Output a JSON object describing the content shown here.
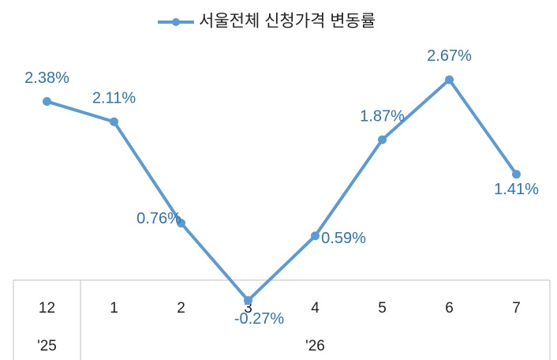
{
  "chart_data": {
    "type": "line",
    "legend": "top",
    "categories": [
      "12",
      "1",
      "2",
      "3",
      "4",
      "5",
      "6",
      "7"
    ],
    "category_groups": [
      "'25",
      "'26"
    ],
    "series": [
      {
        "name": "서울전체 신청가격 변동률",
        "color": "#5b9bd5",
        "values": [
          2.38,
          2.11,
          0.76,
          -0.27,
          0.59,
          1.87,
          2.67,
          1.41
        ],
        "value_labels": [
          "2.38%",
          "2.11%",
          "0.76%",
          "-0.27%",
          "0.59%",
          "1.87%",
          "2.67%",
          "1.41%"
        ]
      }
    ],
    "ylim": [
      -1,
      3.5
    ]
  }
}
